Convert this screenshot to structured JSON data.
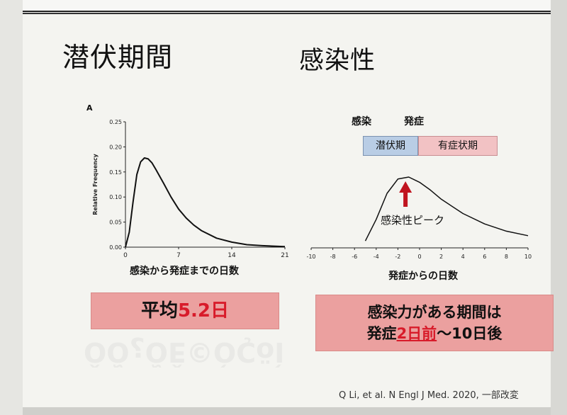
{
  "left": {
    "title": "潜伏期間",
    "chart_data": {
      "type": "line",
      "panel_label": "A",
      "ylabel": "Relative Frequency",
      "xlabel": "感染から発症までの日数",
      "xlim": [
        0,
        21
      ],
      "ylim": [
        0,
        0.25
      ],
      "x_ticks": [
        "0",
        "7",
        "14",
        "21"
      ],
      "y_ticks": [
        "0.00",
        "0.05",
        "0.10",
        "0.15",
        "0.20",
        "0.25"
      ],
      "x": [
        0,
        0.5,
        1,
        1.5,
        2,
        2.5,
        3,
        3.5,
        4,
        5,
        6,
        7,
        8,
        9,
        10,
        12,
        14,
        16,
        18,
        21
      ],
      "y": [
        0,
        0.03,
        0.09,
        0.145,
        0.17,
        0.178,
        0.176,
        0.168,
        0.155,
        0.128,
        0.1,
        0.076,
        0.058,
        0.044,
        0.033,
        0.018,
        0.01,
        0.005,
        0.003,
        0.001
      ]
    },
    "summary_prefix": "平均",
    "summary_value": "5.2日"
  },
  "right": {
    "title": "感染性",
    "infection_label": "感染",
    "onset_label": "発症",
    "latent_label": "潜伏期",
    "symptomatic_label": "有症状期",
    "peak_label": "感染性ピーク",
    "chart_data": {
      "type": "line",
      "xlabel": "発症からの日数",
      "xlim": [
        -10,
        10
      ],
      "x_ticks": [
        "-10",
        "-8",
        "-6",
        "-4",
        "-2",
        "0",
        "2",
        "4",
        "6",
        "8",
        "10"
      ],
      "x": [
        -5,
        -4,
        -3,
        -2,
        -1,
        0,
        1,
        2,
        4,
        6,
        8,
        10
      ],
      "y": [
        0.02,
        0.35,
        0.75,
        0.97,
        1.0,
        0.92,
        0.8,
        0.66,
        0.44,
        0.28,
        0.17,
        0.1
      ]
    },
    "summary_line1": "感染力がある期間は",
    "summary_line2_prefix": "発症",
    "summary_line2_highlight": "2日前",
    "summary_line2_suffix": "〜10日後"
  },
  "reference": "Q Li, et al. N Engl J Med. 2020, 一部改変",
  "colors": {
    "summary_box": "#eba09f",
    "accent_red": "#d81b2a",
    "latent_blue": "#b9cde5",
    "symptomatic_pink": "#f2c2c4"
  }
}
